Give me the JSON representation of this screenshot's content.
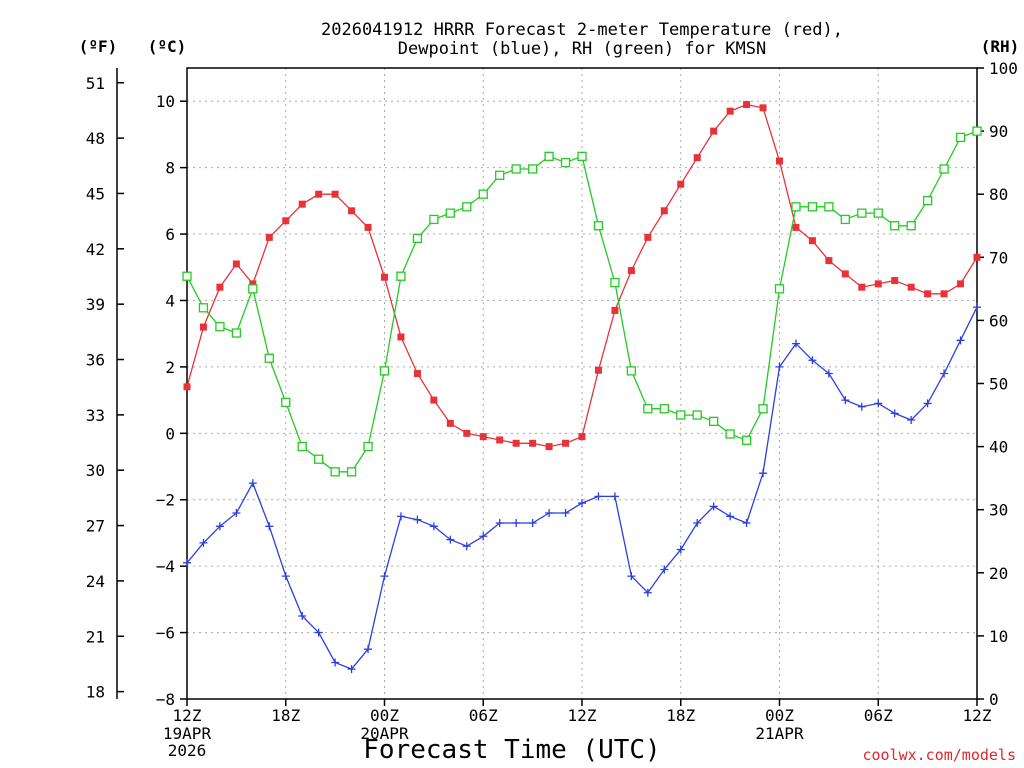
{
  "chart_data": {
    "type": "line",
    "title_line1": "2026041912 HRRR Forecast 2-meter Temperature (red),",
    "title_line2": "Dewpoint (blue), RH (green) for KMSN",
    "xlabel": "Forecast Time (UTC)",
    "credit": "coolwx.com/models",
    "unit_f": "(ºF)",
    "unit_c": "(ºC)",
    "unit_rh": "(RH)",
    "x_ticks": [
      "12Z",
      "18Z",
      "00Z",
      "06Z",
      "12Z",
      "18Z",
      "00Z",
      "06Z",
      "12Z"
    ],
    "x_date_labels": [
      {
        "at": "12Z",
        "lines": [
          "19APR",
          "2026"
        ]
      },
      {
        "at": "00Z",
        "lines": [
          "20APR"
        ]
      },
      {
        "at": "00Z",
        "lines": [
          "21APR"
        ]
      }
    ],
    "x_range_hours": [
      0,
      48
    ],
    "celsius_ticks": [
      "10",
      "8",
      "6",
      "4",
      "2",
      "0",
      "−2",
      "−4",
      "−6",
      "−8"
    ],
    "celsius_range": [
      -8,
      11
    ],
    "fahrenheit_ticks": [
      "51",
      "48",
      "45",
      "42",
      "39",
      "36",
      "33",
      "30",
      "27",
      "24",
      "21",
      "18"
    ],
    "rh_ticks": [
      "100",
      "90",
      "80",
      "70",
      "60",
      "50",
      "40",
      "30",
      "20",
      "10",
      "0"
    ],
    "rh_range": [
      0,
      100
    ],
    "grid": true,
    "series": [
      {
        "name": "Temperature",
        "color": "#e8323a",
        "marker": "filled-square",
        "axis": "celsius",
        "values": [
          1.4,
          3.2,
          4.4,
          5.1,
          4.5,
          5.9,
          6.4,
          6.9,
          7.2,
          7.2,
          6.7,
          6.2,
          4.7,
          2.9,
          1.8,
          1.0,
          0.3,
          0.0,
          -0.1,
          -0.2,
          -0.3,
          -0.3,
          -0.4,
          -0.3,
          -0.1,
          1.9,
          3.7,
          4.9,
          5.9,
          6.7,
          7.5,
          8.3,
          9.1,
          9.7,
          9.9,
          9.8,
          8.2,
          6.2,
          5.8,
          5.2,
          4.8,
          4.4,
          4.5,
          4.6,
          4.4,
          4.2,
          4.2,
          4.5,
          5.3
        ]
      },
      {
        "name": "Dewpoint",
        "color": "#2b3fe0",
        "marker": "plus",
        "axis": "celsius",
        "values": [
          -3.9,
          -3.3,
          -2.8,
          -2.4,
          -1.5,
          -2.8,
          -4.3,
          -5.5,
          -6.0,
          -6.9,
          -7.1,
          -6.5,
          -4.3,
          -2.5,
          -2.6,
          -2.8,
          -3.2,
          -3.4,
          -3.1,
          -2.7,
          -2.7,
          -2.7,
          -2.4,
          -2.4,
          -2.1,
          -1.9,
          -1.9,
          -4.3,
          -4.8,
          -4.1,
          -3.5,
          -2.7,
          -2.2,
          -2.5,
          -2.7,
          -1.2,
          2.0,
          2.7,
          2.2,
          1.8,
          1.0,
          0.8,
          0.9,
          0.6,
          0.4,
          0.9,
          1.8,
          2.8,
          3.8
        ]
      },
      {
        "name": "RH",
        "color": "#22cc22",
        "marker": "open-square",
        "axis": "rh",
        "values": [
          67,
          62,
          59,
          58,
          65,
          54,
          47,
          40,
          38,
          36,
          36,
          40,
          52,
          67,
          73,
          76,
          77,
          78,
          80,
          83,
          84,
          84,
          86,
          85,
          86,
          75,
          66,
          52,
          46,
          46,
          45,
          45,
          44,
          42,
          41,
          46,
          65,
          78,
          78,
          78,
          76,
          77,
          77,
          75,
          75,
          79,
          84,
          89,
          90
        ]
      }
    ]
  }
}
